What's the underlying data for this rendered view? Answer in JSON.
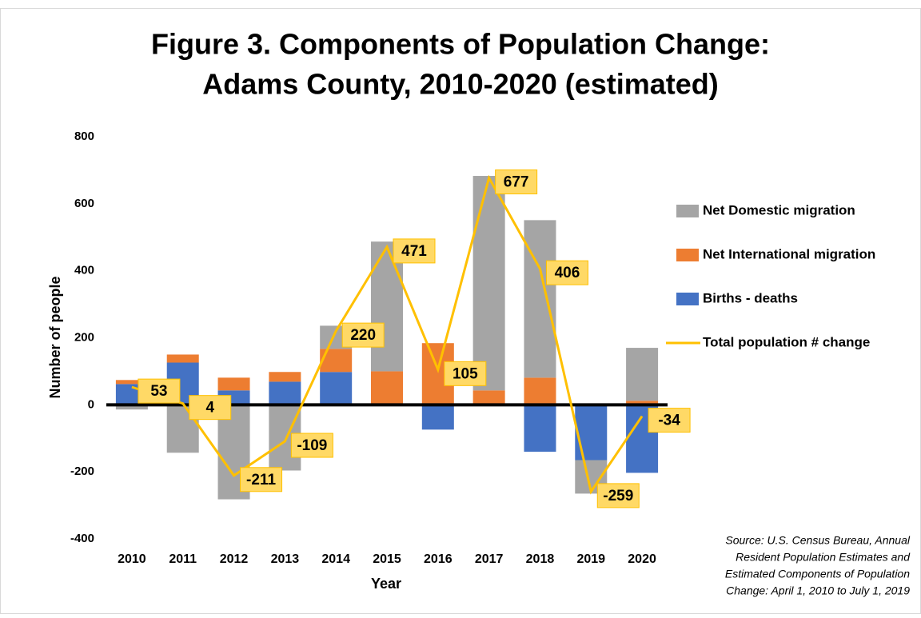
{
  "chart_data": {
    "type": "bar",
    "title": [
      "Figure 3. Components of Population Change:",
      "Adams County, 2010-2020 (estimated)"
    ],
    "x_label": "Year",
    "y_label": "Number of people",
    "categories": [
      "2010",
      "2011",
      "2012",
      "2013",
      "2014",
      "2015",
      "2016",
      "2017",
      "2018",
      "2019",
      "2020"
    ],
    "series": [
      {
        "name": "Births - deaths",
        "color": "#4472c4",
        "values": [
          62,
          126,
          43,
          69,
          98,
          0,
          -74,
          0,
          -140,
          -165,
          -203
        ]
      },
      {
        "name": "Net International migration",
        "color": "#ed7d31",
        "values": [
          12,
          24,
          38,
          29,
          69,
          100,
          184,
          43,
          81,
          3,
          12
        ]
      },
      {
        "name": "Net Domestic migration",
        "color": "#a5a5a5",
        "values": [
          -14,
          -143,
          -282,
          -196,
          69,
          387,
          0,
          640,
          470,
          -100,
          158
        ]
      },
      {
        "name": "Total population # change",
        "color": "#ffc000",
        "type": "line",
        "values": [
          53,
          4,
          -211,
          -109,
          220,
          471,
          105,
          677,
          406,
          -259,
          -34
        ]
      }
    ],
    "ylim": [
      -400,
      800
    ],
    "yticks": [
      -400,
      -200,
      0,
      200,
      400,
      600,
      800
    ],
    "grid": false,
    "legend": "right",
    "source": [
      "Source: U.S. Census Bureau, Annual",
      "Resident Population Estimates and",
      "Estimated Components of Population",
      "Change: April 1, 2010 to July 1, 2019"
    ]
  }
}
